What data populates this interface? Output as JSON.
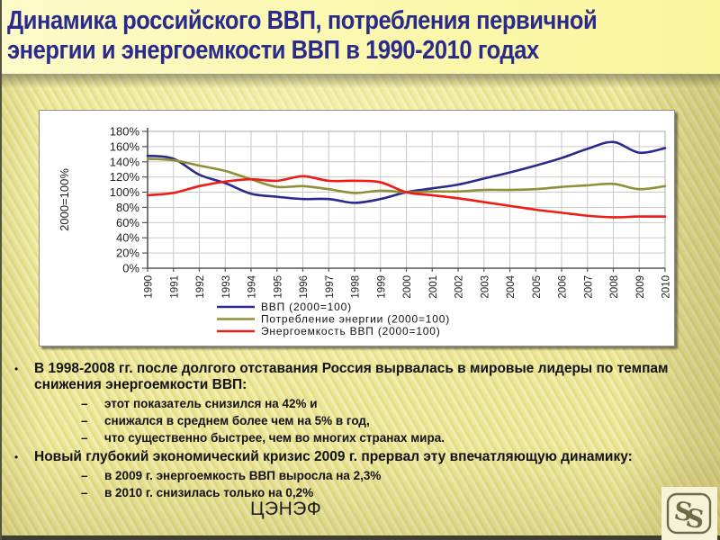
{
  "header": {
    "title_line1": "Динамика российского ВВП, потребления первичной",
    "title_line2": "энергии и энергоемкости ВВП в 1990-2010 годах"
  },
  "chart_data": {
    "type": "line",
    "title": "",
    "xlabel": "",
    "ylabel": "2000=100%",
    "ylim": [
      0,
      180
    ],
    "ytick_step": 20,
    "ytick_format": "percent",
    "grid": true,
    "legend_position": "bottom",
    "x": [
      "1990",
      "1991",
      "1992",
      "1993",
      "1994",
      "1995",
      "1996",
      "1997",
      "1998",
      "1999",
      "2000",
      "2001",
      "2002",
      "2003",
      "2004",
      "2005",
      "2006",
      "2007",
      "2008",
      "2009",
      "2010"
    ],
    "series": [
      {
        "name": "ВВП (2000=100)",
        "color": "#2A2A8C",
        "values": [
          148,
          144,
          123,
          112,
          98,
          94,
          91,
          91,
          86,
          91,
          100,
          105,
          110,
          118,
          126,
          135,
          145,
          157,
          166,
          152,
          158
        ]
      },
      {
        "name": "Потребление энергии (2000=100)",
        "color": "#8F8F38",
        "values": [
          144,
          142,
          135,
          128,
          117,
          107,
          108,
          104,
          99,
          102,
          100,
          101,
          101,
          103,
          103,
          104,
          107,
          109,
          111,
          104,
          108
        ]
      },
      {
        "name": "Энергоемкость ВВП (2000=100)",
        "color": "#EE1C14",
        "values": [
          96,
          99,
          108,
          114,
          117,
          115,
          121,
          115,
          115,
          113,
          100,
          96,
          92,
          87,
          82,
          77,
          73,
          69,
          67,
          68,
          68
        ]
      }
    ]
  },
  "content": {
    "bullets": [
      {
        "level": 1,
        "text": "В 1998-2008 гг. после долгого отставания Россия вырвалась в мировые лидеры по темпам снижения энергоемкости ВВП:"
      },
      {
        "level": 2,
        "text": "этот показатель снизился на 42% и"
      },
      {
        "level": 2,
        "text": "снижался в среднем более чем на 5% в год,"
      },
      {
        "level": 2,
        "text": "что существенно быстрее, чем во многих странах мира."
      },
      {
        "level": 1,
        "text": "Новый глубокий экономический кризис 2009 г. прервал эту впечатляющую динамику:"
      },
      {
        "level": 2,
        "text": "в 2009 г. энергоемкость ВВП выросла на 2,3%"
      },
      {
        "level": 2,
        "text": "в 2010 г. снизилась только на 0,2%"
      }
    ]
  },
  "footer": {
    "org": "ЦЭНЭФ"
  },
  "logo": {
    "name": "cenef-logo",
    "glyph": "SS",
    "color": "#6E6C48"
  },
  "colors": {
    "title_text": "#2A2A8C",
    "title_bg": "#FAF7AC",
    "slide_bg": "#EDE793",
    "gdp_line": "#2A2A8C",
    "energy_line": "#8F8F38",
    "intensity_line": "#EE1C14",
    "gridline": "#c9c9c9"
  }
}
